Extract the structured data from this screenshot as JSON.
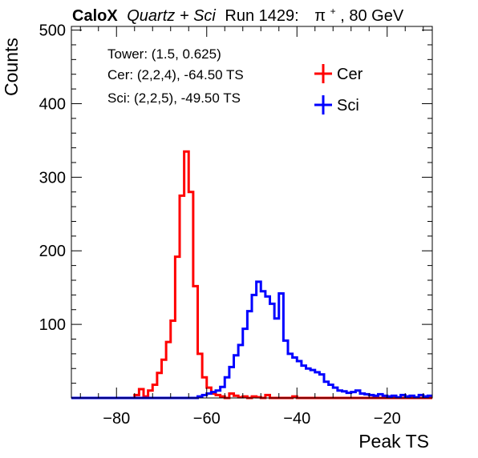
{
  "header": {
    "brand": "CaloX",
    "detector": "Quartz + Sci",
    "run": "Run 1429:",
    "particle": "π",
    "particle_charge": "+",
    "energy": ", 80 GeV"
  },
  "annotations": {
    "tower": "Tower: (1.5, 0.625)",
    "cer": "Cer: (2,2,4), -64.50 TS",
    "sci": "Sci: (2,2,5), -49.50 TS"
  },
  "chart_data": {
    "type": "histogram",
    "xlabel": "Peak TS",
    "ylabel": "Counts",
    "xlim": [
      -90,
      -10
    ],
    "ylim": [
      0,
      505
    ],
    "x_ticks": [
      -80,
      -60,
      -40,
      -20
    ],
    "y_ticks": [
      100,
      200,
      300,
      400,
      500
    ],
    "bin_width": 1,
    "grid": false,
    "legend_position": "top-right",
    "series": [
      {
        "name": "Cer",
        "color": "#ff0000",
        "bins": [
          {
            "x": -90,
            "y": 0
          },
          {
            "x": -89,
            "y": 0
          },
          {
            "x": -88,
            "y": 0
          },
          {
            "x": -87,
            "y": 0
          },
          {
            "x": -86,
            "y": 0
          },
          {
            "x": -85,
            "y": 0
          },
          {
            "x": -84,
            "y": 0
          },
          {
            "x": -83,
            "y": 0
          },
          {
            "x": -82,
            "y": 0
          },
          {
            "x": -81,
            "y": 0
          },
          {
            "x": -80,
            "y": 0
          },
          {
            "x": -79,
            "y": 0
          },
          {
            "x": -78,
            "y": 0
          },
          {
            "x": -77,
            "y": 0
          },
          {
            "x": -76,
            "y": 4
          },
          {
            "x": -75,
            "y": 12
          },
          {
            "x": -74,
            "y": 2
          },
          {
            "x": -73,
            "y": 10
          },
          {
            "x": -72,
            "y": 18
          },
          {
            "x": -71,
            "y": 34
          },
          {
            "x": -70,
            "y": 52
          },
          {
            "x": -69,
            "y": 76
          },
          {
            "x": -68,
            "y": 105
          },
          {
            "x": -67,
            "y": 192
          },
          {
            "x": -66,
            "y": 275
          },
          {
            "x": -65,
            "y": 335
          },
          {
            "x": -64,
            "y": 280
          },
          {
            "x": -63,
            "y": 152
          },
          {
            "x": -62,
            "y": 60
          },
          {
            "x": -61,
            "y": 28
          },
          {
            "x": -60,
            "y": 14
          },
          {
            "x": -59,
            "y": 6
          },
          {
            "x": -58,
            "y": 4
          },
          {
            "x": -57,
            "y": 2
          },
          {
            "x": -56,
            "y": 0
          },
          {
            "x": -55,
            "y": 6
          },
          {
            "x": -54,
            "y": 3
          },
          {
            "x": -53,
            "y": 1
          },
          {
            "x": -52,
            "y": 2
          },
          {
            "x": -51,
            "y": 0
          },
          {
            "x": -50,
            "y": 2
          },
          {
            "x": -49,
            "y": 1
          },
          {
            "x": -48,
            "y": 0
          },
          {
            "x": -47,
            "y": 4
          },
          {
            "x": -46,
            "y": 0
          },
          {
            "x": -45,
            "y": 0
          },
          {
            "x": -44,
            "y": 0
          },
          {
            "x": -43,
            "y": 0
          },
          {
            "x": -42,
            "y": 0
          },
          {
            "x": -41,
            "y": 2
          },
          {
            "x": -40,
            "y": 0
          },
          {
            "x": -39,
            "y": 0
          },
          {
            "x": -38,
            "y": 0
          },
          {
            "x": -37,
            "y": 0
          },
          {
            "x": -36,
            "y": 0
          },
          {
            "x": -35,
            "y": 0
          },
          {
            "x": -34,
            "y": 0
          },
          {
            "x": -33,
            "y": 0
          },
          {
            "x": -32,
            "y": 0
          },
          {
            "x": -31,
            "y": 0
          },
          {
            "x": -30,
            "y": 0
          },
          {
            "x": -29,
            "y": 0
          },
          {
            "x": -28,
            "y": 0
          },
          {
            "x": -27,
            "y": 0
          },
          {
            "x": -26,
            "y": 0
          },
          {
            "x": -25,
            "y": 0
          },
          {
            "x": -24,
            "y": 0
          },
          {
            "x": -23,
            "y": 0
          },
          {
            "x": -22,
            "y": 0
          },
          {
            "x": -21,
            "y": 0
          },
          {
            "x": -20,
            "y": 0
          },
          {
            "x": -19,
            "y": 0
          },
          {
            "x": -18,
            "y": 0
          },
          {
            "x": -17,
            "y": 0
          },
          {
            "x": -16,
            "y": 0
          },
          {
            "x": -15,
            "y": 0
          },
          {
            "x": -14,
            "y": 0
          },
          {
            "x": -13,
            "y": 0
          },
          {
            "x": -12,
            "y": 0
          },
          {
            "x": -11,
            "y": 0
          }
        ]
      },
      {
        "name": "Sci",
        "color": "#0000ff",
        "bins": [
          {
            "x": -90,
            "y": 0
          },
          {
            "x": -89,
            "y": 0
          },
          {
            "x": -88,
            "y": 0
          },
          {
            "x": -87,
            "y": 0
          },
          {
            "x": -86,
            "y": 0
          },
          {
            "x": -85,
            "y": 0
          },
          {
            "x": -84,
            "y": 0
          },
          {
            "x": -83,
            "y": 0
          },
          {
            "x": -82,
            "y": 0
          },
          {
            "x": -81,
            "y": 0
          },
          {
            "x": -80,
            "y": 0
          },
          {
            "x": -79,
            "y": 0
          },
          {
            "x": -78,
            "y": 0
          },
          {
            "x": -77,
            "y": 0
          },
          {
            "x": -76,
            "y": 0
          },
          {
            "x": -75,
            "y": 0
          },
          {
            "x": -74,
            "y": 0
          },
          {
            "x": -73,
            "y": 0
          },
          {
            "x": -72,
            "y": 0
          },
          {
            "x": -71,
            "y": 0
          },
          {
            "x": -70,
            "y": 0
          },
          {
            "x": -69,
            "y": 0
          },
          {
            "x": -68,
            "y": 0
          },
          {
            "x": -67,
            "y": 0
          },
          {
            "x": -66,
            "y": 0
          },
          {
            "x": -65,
            "y": 0
          },
          {
            "x": -64,
            "y": 0
          },
          {
            "x": -63,
            "y": 0
          },
          {
            "x": -62,
            "y": 2
          },
          {
            "x": -61,
            "y": 4
          },
          {
            "x": -60,
            "y": 6
          },
          {
            "x": -59,
            "y": 8
          },
          {
            "x": -58,
            "y": 10
          },
          {
            "x": -57,
            "y": 15
          },
          {
            "x": -56,
            "y": 28
          },
          {
            "x": -55,
            "y": 42
          },
          {
            "x": -54,
            "y": 58
          },
          {
            "x": -53,
            "y": 72
          },
          {
            "x": -52,
            "y": 94
          },
          {
            "x": -51,
            "y": 118
          },
          {
            "x": -50,
            "y": 140
          },
          {
            "x": -49,
            "y": 158
          },
          {
            "x": -48,
            "y": 145
          },
          {
            "x": -47,
            "y": 138
          },
          {
            "x": -46,
            "y": 128
          },
          {
            "x": -45,
            "y": 108
          },
          {
            "x": -44,
            "y": 142
          },
          {
            "x": -43,
            "y": 78
          },
          {
            "x": -42,
            "y": 60
          },
          {
            "x": -41,
            "y": 55
          },
          {
            "x": -40,
            "y": 50
          },
          {
            "x": -39,
            "y": 44
          },
          {
            "x": -38,
            "y": 40
          },
          {
            "x": -37,
            "y": 38
          },
          {
            "x": -36,
            "y": 35
          },
          {
            "x": -35,
            "y": 32
          },
          {
            "x": -34,
            "y": 22
          },
          {
            "x": -33,
            "y": 18
          },
          {
            "x": -32,
            "y": 14
          },
          {
            "x": -31,
            "y": 10
          },
          {
            "x": -30,
            "y": 9
          },
          {
            "x": -29,
            "y": 7
          },
          {
            "x": -28,
            "y": 8
          },
          {
            "x": -27,
            "y": 10
          },
          {
            "x": -26,
            "y": 6
          },
          {
            "x": -25,
            "y": 5
          },
          {
            "x": -24,
            "y": 4
          },
          {
            "x": -23,
            "y": 3
          },
          {
            "x": -22,
            "y": 5
          },
          {
            "x": -21,
            "y": 3
          },
          {
            "x": -20,
            "y": 2
          },
          {
            "x": -19,
            "y": 3
          },
          {
            "x": -18,
            "y": 1
          },
          {
            "x": -17,
            "y": 4
          },
          {
            "x": -16,
            "y": 2
          },
          {
            "x": -15,
            "y": 3
          },
          {
            "x": -14,
            "y": 1
          },
          {
            "x": -13,
            "y": 4
          },
          {
            "x": -12,
            "y": 2
          },
          {
            "x": -11,
            "y": 3
          }
        ]
      }
    ]
  }
}
